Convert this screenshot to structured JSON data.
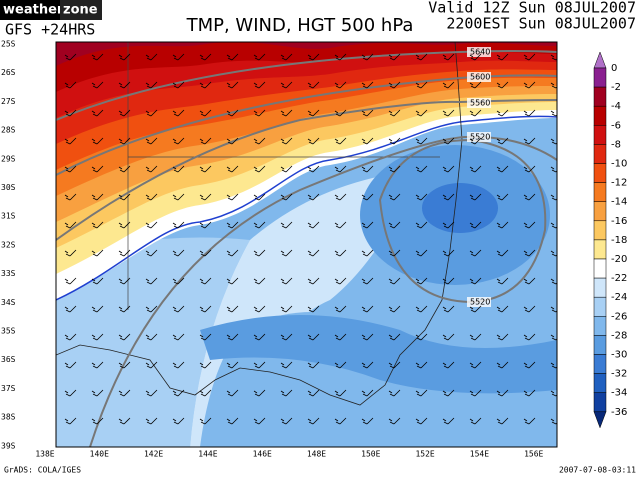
{
  "header": {
    "logo_left": "weather",
    "logo_right": "zone",
    "model": "GFS +24HRS",
    "title": "TMP, WIND, HGT 500 hPa",
    "valid_line1": "Valid 12Z Sun 08JUL2007",
    "valid_line2": "2200EST Sun 08JUL2007"
  },
  "map": {
    "lat_labels": [
      "25S",
      "26S",
      "27S",
      "28S",
      "29S",
      "30S",
      "31S",
      "32S",
      "33S",
      "34S",
      "35S",
      "36S",
      "37S",
      "38S",
      "39S"
    ],
    "lon_labels": [
      "138E",
      "140E",
      "142E",
      "144E",
      "146E",
      "148E",
      "150E",
      "152E",
      "154E",
      "156E"
    ],
    "contour_labels": [
      "5640",
      "5600",
      "5560",
      "5520",
      "5520"
    ]
  },
  "colorbar": {
    "labels": [
      "0",
      "-2",
      "-4",
      "-6",
      "-8",
      "-10",
      "-12",
      "-14",
      "-16",
      "-18",
      "-20",
      "-22",
      "-24",
      "-26",
      "-28",
      "-30",
      "-32",
      "-34",
      "-36"
    ]
  },
  "footer": {
    "credit": "GrADS: COLA/IGES",
    "timestamp": "2007-07-08-03:11"
  }
}
